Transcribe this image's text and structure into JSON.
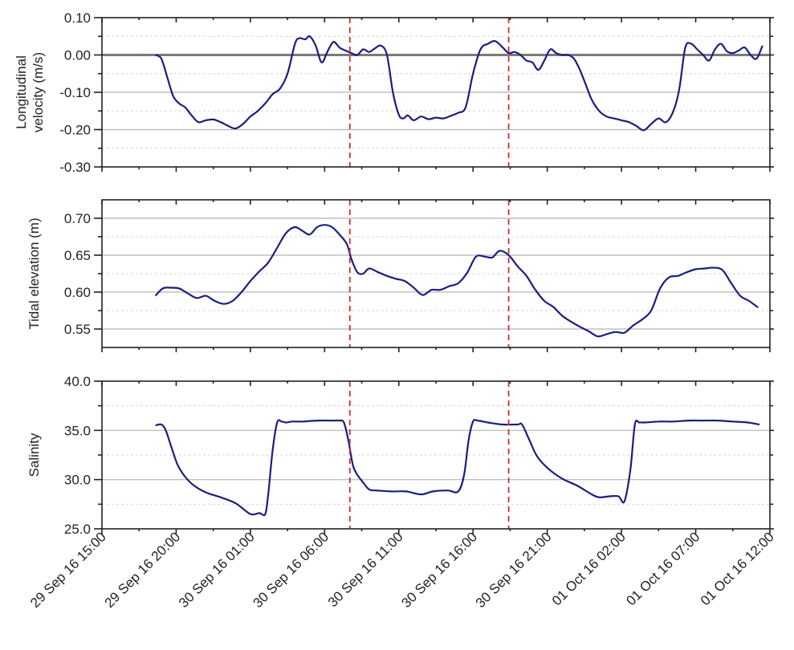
{
  "chart_data": [
    {
      "type": "line",
      "title": "",
      "ylabel": "Longitudinal velocity (m/s)",
      "ylabel_lines": [
        "Longitudinal",
        "velocity (m/s)"
      ],
      "ylim": [
        -0.3,
        0.1
      ],
      "yticks": [
        0.1,
        0.0,
        -0.1,
        -0.2,
        -0.3
      ],
      "ytick_labels": [
        "0.10",
        "0.00",
        "-0.10",
        "-0.20",
        "-0.30"
      ],
      "minor_gridlines": [
        0.05,
        -0.05,
        -0.15,
        -0.25
      ],
      "zero_line": true,
      "grid": true,
      "series": [
        {
          "name": "Longitudinal velocity",
          "color": "#1a1f80",
          "x_hours": [
            3.6,
            4.0,
            4.4,
            4.8,
            5.2,
            5.6,
            6.0,
            6.5,
            7.0,
            7.5,
            8.0,
            8.5,
            9.0,
            9.5,
            10.0,
            10.5,
            11.0,
            11.5,
            12.0,
            12.5,
            13.0,
            13.3,
            13.7,
            14.0,
            14.4,
            14.8,
            15.2,
            15.6,
            16.0,
            16.4,
            16.8,
            17.2,
            17.6,
            18.0,
            18.4,
            18.8,
            19.2,
            19.6,
            20.0,
            20.3,
            20.6,
            21.0,
            21.5,
            22.0,
            22.5,
            23.0,
            23.5,
            24.0,
            24.5,
            25.0,
            25.5,
            26.0,
            26.5,
            27.0,
            27.4,
            27.8,
            28.2,
            28.6,
            29.0,
            29.4,
            29.8,
            30.2,
            30.6,
            31.0,
            31.4,
            31.8,
            32.2,
            32.6,
            33.0,
            33.5,
            34.0,
            34.5,
            35.0,
            35.5,
            36.0,
            36.5,
            37.0,
            37.5,
            38.0,
            38.5,
            38.9,
            39.3,
            39.7,
            40.1,
            40.5,
            40.9,
            41.3,
            41.7,
            42.1,
            42.5,
            42.9,
            43.3,
            43.7,
            44.1,
            44.5
          ],
          "y": [
            0.0,
            -0.01,
            -0.06,
            -0.11,
            -0.13,
            -0.14,
            -0.16,
            -0.18,
            -0.175,
            -0.173,
            -0.18,
            -0.19,
            -0.197,
            -0.185,
            -0.165,
            -0.15,
            -0.13,
            -0.105,
            -0.09,
            -0.05,
            0.03,
            0.045,
            0.042,
            0.05,
            0.025,
            -0.02,
            0.01,
            0.035,
            0.02,
            0.012,
            0.005,
            0.0,
            0.015,
            0.008,
            0.018,
            0.025,
            0.0,
            -0.1,
            -0.16,
            -0.17,
            -0.162,
            -0.175,
            -0.165,
            -0.172,
            -0.168,
            -0.17,
            -0.163,
            -0.155,
            -0.14,
            -0.05,
            0.015,
            0.03,
            0.037,
            0.02,
            0.005,
            0.008,
            0.0,
            -0.015,
            -0.02,
            -0.04,
            -0.015,
            0.015,
            0.005,
            0.0,
            0.0,
            -0.01,
            -0.04,
            -0.08,
            -0.12,
            -0.15,
            -0.165,
            -0.17,
            -0.175,
            -0.18,
            -0.19,
            -0.202,
            -0.185,
            -0.17,
            -0.18,
            -0.15,
            -0.09,
            0.02,
            0.03,
            0.015,
            0.0,
            -0.015,
            0.015,
            0.03,
            0.01,
            0.005,
            0.012,
            0.02,
            0.0,
            -0.01,
            0.025
          ]
        }
      ],
      "vlines_hours": [
        16.7,
        27.4
      ],
      "vline_color": "#d03030"
    },
    {
      "type": "line",
      "title": "",
      "ylabel": "Tidal elevation (m)",
      "ylim": [
        0.525,
        0.725
      ],
      "yticks": [
        0.7,
        0.65,
        0.6,
        0.55
      ],
      "ytick_labels": [
        "0.70",
        "0.65",
        "0.60",
        "0.55"
      ],
      "minor_gridlines": [
        0.675,
        0.625,
        0.575
      ],
      "grid": true,
      "series": [
        {
          "name": "Tidal elevation",
          "color": "#1a1f80",
          "x_hours": [
            3.6,
            4.1,
            4.6,
            5.2,
            5.8,
            6.4,
            7.0,
            7.6,
            8.2,
            8.8,
            9.4,
            10.0,
            10.6,
            11.2,
            11.8,
            12.4,
            13.0,
            13.5,
            14.0,
            14.5,
            15.0,
            15.5,
            16.0,
            16.5,
            16.8,
            17.2,
            17.6,
            18.0,
            18.6,
            19.2,
            19.8,
            20.4,
            21.0,
            21.6,
            22.2,
            22.8,
            23.4,
            24.0,
            24.6,
            25.2,
            25.8,
            26.3,
            26.8,
            27.4,
            28.0,
            28.6,
            29.2,
            29.8,
            30.4,
            31.0,
            31.6,
            32.2,
            32.8,
            33.4,
            34.0,
            34.6,
            35.2,
            35.8,
            36.4,
            37.0,
            37.6,
            38.2,
            38.8,
            39.4,
            40.0,
            40.6,
            41.2,
            41.8,
            42.4,
            43.0,
            43.6,
            44.2
          ],
          "y": [
            0.595,
            0.605,
            0.606,
            0.605,
            0.598,
            0.592,
            0.595,
            0.588,
            0.584,
            0.588,
            0.6,
            0.615,
            0.628,
            0.64,
            0.66,
            0.68,
            0.688,
            0.683,
            0.678,
            0.688,
            0.691,
            0.688,
            0.678,
            0.665,
            0.645,
            0.627,
            0.625,
            0.632,
            0.627,
            0.622,
            0.618,
            0.615,
            0.606,
            0.596,
            0.603,
            0.603,
            0.608,
            0.612,
            0.626,
            0.648,
            0.648,
            0.647,
            0.656,
            0.65,
            0.635,
            0.622,
            0.603,
            0.588,
            0.58,
            0.568,
            0.56,
            0.553,
            0.547,
            0.54,
            0.543,
            0.546,
            0.545,
            0.555,
            0.563,
            0.575,
            0.605,
            0.62,
            0.622,
            0.627,
            0.631,
            0.632,
            0.633,
            0.63,
            0.612,
            0.595,
            0.588,
            0.579
          ]
        }
      ],
      "vlines_hours": [
        16.7,
        27.4
      ],
      "vline_color": "#d03030"
    },
    {
      "type": "line",
      "title": "",
      "ylabel": "Salinity",
      "ylim": [
        25.0,
        40.0
      ],
      "yticks": [
        40.0,
        35.0,
        30.0,
        25.0
      ],
      "ytick_labels": [
        "40.0",
        "35.0",
        "30.0",
        "25.0"
      ],
      "minor_gridlines": [
        37.5,
        32.5,
        27.5
      ],
      "grid": true,
      "xlabel": "",
      "xticks_hours": [
        0,
        5,
        10,
        15,
        20,
        25,
        30,
        35,
        40,
        45
      ],
      "xtick_labels": [
        "29 Sep 16 15:00",
        "29 Sep 16 20:00",
        "30 Sep 16 01:00",
        "30 Sep 16 06:00",
        "30 Sep 16 11:00",
        "30 Sep 16 16:00",
        "30 Sep 16 21:00",
        "01 Oct 16 02:00",
        "01 Oct 16 07:00",
        "01 Oct 16 12:00"
      ],
      "series": [
        {
          "name": "Salinity",
          "color": "#1a1f80",
          "x_hours": [
            3.6,
            4.0,
            4.3,
            4.7,
            5.1,
            5.6,
            6.2,
            7.0,
            8.0,
            9.0,
            10.0,
            10.6,
            11.0,
            11.2,
            11.5,
            11.8,
            12.1,
            12.4,
            12.8,
            13.5,
            14.5,
            15.5,
            16.0,
            16.3,
            16.6,
            16.9,
            17.2,
            17.6,
            18.0,
            18.5,
            19.5,
            20.5,
            21.5,
            22.3,
            23.3,
            24.0,
            24.4,
            24.7,
            25.0,
            25.3,
            26.0,
            27.0,
            28.0,
            28.3,
            28.8,
            29.3,
            30.0,
            31.0,
            32.0,
            33.0,
            33.5,
            34.2,
            34.8,
            35.2,
            35.6,
            35.9,
            36.2,
            36.6,
            37.5,
            38.5,
            39.5,
            40.5,
            41.5,
            42.5,
            43.5,
            44.3
          ],
          "y": [
            35.5,
            35.6,
            35.0,
            33.2,
            31.5,
            30.3,
            29.4,
            28.7,
            28.2,
            27.6,
            26.5,
            26.6,
            26.5,
            28.5,
            33.0,
            35.8,
            35.9,
            35.8,
            35.9,
            35.9,
            36.0,
            36.0,
            36.0,
            35.8,
            34.0,
            31.5,
            30.5,
            29.7,
            29.0,
            28.9,
            28.8,
            28.8,
            28.5,
            28.8,
            28.9,
            28.8,
            30.5,
            34.0,
            35.9,
            36.0,
            35.8,
            35.6,
            35.6,
            35.6,
            34.0,
            32.4,
            31.2,
            30.1,
            29.4,
            28.5,
            28.2,
            28.3,
            28.3,
            27.8,
            31.0,
            35.6,
            35.8,
            35.8,
            35.9,
            35.9,
            36.0,
            36.0,
            36.0,
            35.9,
            35.8,
            35.6
          ]
        }
      ],
      "vlines_hours": [
        16.7,
        27.4
      ],
      "vline_color": "#d03030"
    }
  ],
  "colors": {
    "line": "#1a1f80",
    "event_line": "#d03030",
    "major_grid": "#b4b4b4",
    "minor_grid": "#d6d6d6",
    "zero_line": "#7a7a7a",
    "axis": "#222222"
  }
}
